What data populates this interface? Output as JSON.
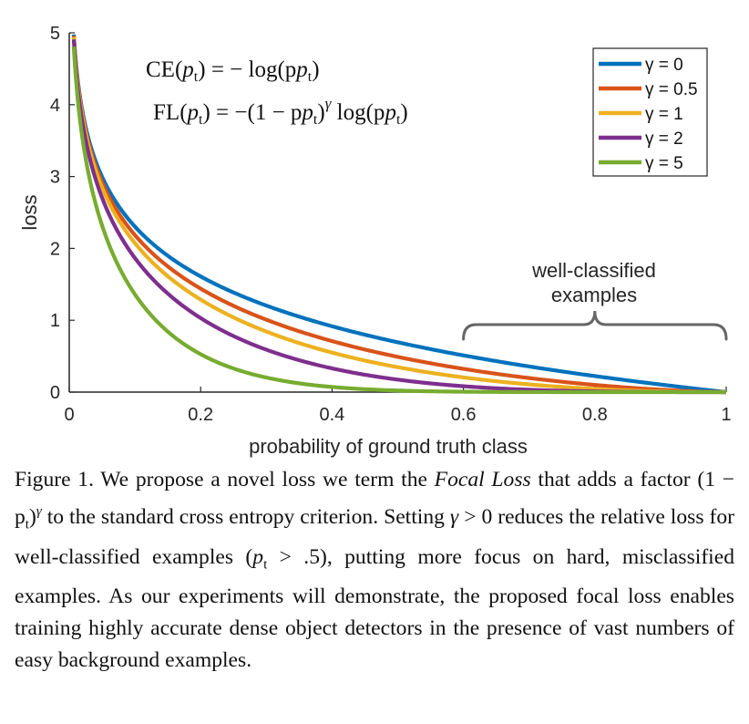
{
  "chart_data": {
    "type": "line",
    "title": "",
    "xlabel": "probability of ground truth class",
    "ylabel": "loss",
    "xlim": [
      0,
      1
    ],
    "ylim": [
      0,
      5
    ],
    "xticks": [
      "0",
      "0.2",
      "0.4",
      "0.6",
      "0.8",
      "1"
    ],
    "yticks": [
      "0",
      "1",
      "2",
      "3",
      "4",
      "5"
    ],
    "grid": false,
    "legend_position": "top-right",
    "series": [
      {
        "name": "γ = 0",
        "gamma": 0,
        "color": "#0072BD",
        "x": [
          0.007,
          0.05,
          0.1,
          0.2,
          0.3,
          0.4,
          0.5,
          0.6,
          0.7,
          0.8,
          0.9,
          1.0
        ],
        "y": [
          4.96,
          3.0,
          2.3,
          1.61,
          1.2,
          0.92,
          0.69,
          0.51,
          0.36,
          0.22,
          0.11,
          0.0
        ]
      },
      {
        "name": "γ = 0.5",
        "gamma": 0.5,
        "color": "#D95319",
        "x": [
          0.007,
          0.05,
          0.1,
          0.2,
          0.3,
          0.4,
          0.5,
          0.6,
          0.7,
          0.8,
          0.9,
          1.0
        ],
        "y": [
          4.94,
          2.92,
          2.18,
          1.44,
          1.01,
          0.71,
          0.49,
          0.32,
          0.2,
          0.1,
          0.03,
          0.0
        ]
      },
      {
        "name": "γ = 1",
        "gamma": 1,
        "color": "#EDB120",
        "x": [
          0.007,
          0.05,
          0.1,
          0.2,
          0.3,
          0.4,
          0.5,
          0.6,
          0.7,
          0.8,
          0.9,
          1.0
        ],
        "y": [
          4.93,
          2.85,
          2.07,
          1.29,
          0.84,
          0.55,
          0.35,
          0.2,
          0.11,
          0.04,
          0.01,
          0.0
        ]
      },
      {
        "name": "γ = 2",
        "gamma": 2,
        "color": "#7E2F8E",
        "x": [
          0.007,
          0.05,
          0.1,
          0.2,
          0.3,
          0.4,
          0.5,
          0.6,
          0.7,
          0.8,
          0.9,
          1.0
        ],
        "y": [
          4.89,
          2.71,
          1.87,
          1.03,
          0.59,
          0.33,
          0.17,
          0.08,
          0.03,
          0.01,
          0.001,
          0.0
        ]
      },
      {
        "name": "γ = 5",
        "gamma": 5,
        "color": "#77AC30",
        "x": [
          0.007,
          0.05,
          0.1,
          0.2,
          0.3,
          0.4,
          0.5,
          0.6,
          0.7,
          0.8,
          0.9,
          1.0
        ],
        "y": [
          4.79,
          2.32,
          1.36,
          0.53,
          0.2,
          0.07,
          0.02,
          0.004,
          0.001,
          0.0,
          0.0,
          0.0
        ]
      }
    ],
    "formulas": [
      {
        "lhs": "CE",
        "rhs": "= − log(p",
        "tail": ")"
      },
      {
        "lhs": "FL",
        "rhs": "= −(1 − p",
        "mid": ")",
        "sup": "γ",
        "tail2": " log(p",
        "end": ")"
      }
    ],
    "formula_arg": "p",
    "formula_sub": "t",
    "annotation": {
      "lines": [
        "well-classified",
        "examples"
      ],
      "x_start": 0.6,
      "x_end": 1.0
    }
  },
  "caption": {
    "figure_label": "Figure 1.",
    "text1": " We propose a novel loss we term the ",
    "emph": "Focal Loss",
    "text2": " that adds a factor ",
    "factor": "(1 − p",
    "factor_sub": "t",
    "factor_close": ")",
    "factor_sup": "γ",
    "text3": " to the standard cross entropy criterion. Setting ",
    "gamma_sym": "γ",
    "gamma_cond": " > 0",
    "text4": " reduces the relative loss for well-classified examples (",
    "pt": "p",
    "pt_sub": "t",
    "pt_cond": " > .5)",
    "text5": ", putting more focus on hard, misclassified examples. As our experiments will demonstrate, the proposed focal loss enables training highly accurate dense object detectors in the presence of vast numbers of easy background examples."
  }
}
